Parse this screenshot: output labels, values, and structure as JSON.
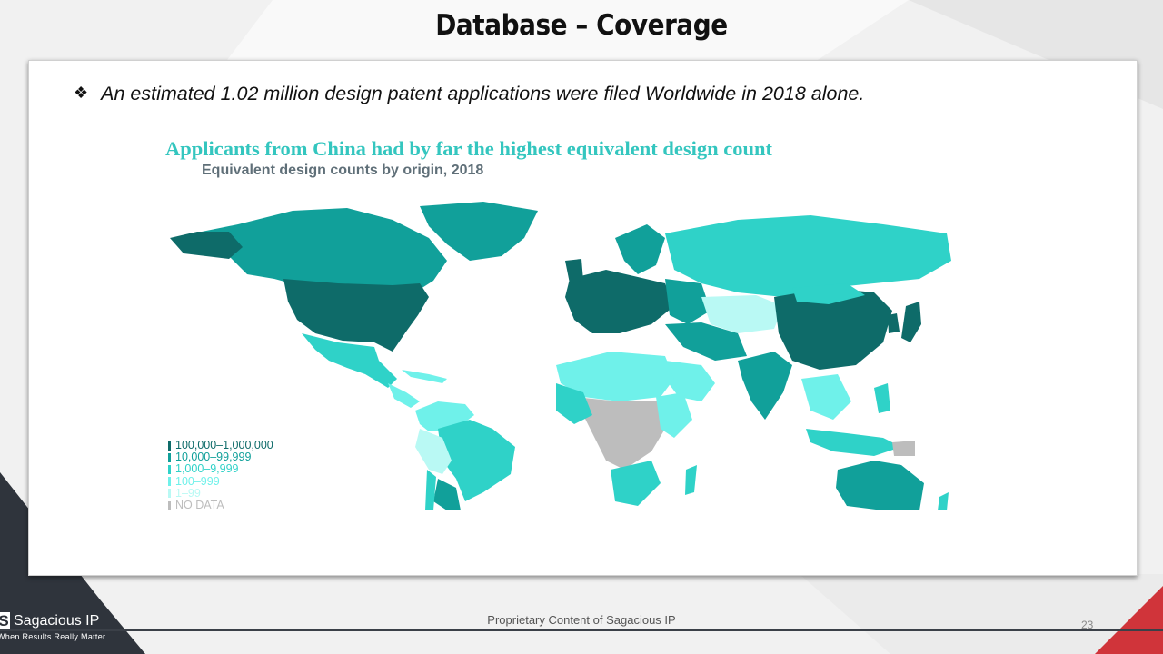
{
  "slide": {
    "title": "Database – Coverage",
    "bullet_icon": "diamond-bullet-icon",
    "bullet_text": "An estimated 1.02 million design patent applications were filed Worldwide in 2018 alone."
  },
  "chart": {
    "title": "Applicants from China had by far the highest equivalent design count",
    "subtitle": "Equivalent design counts by origin, 2018"
  },
  "legend": {
    "items": [
      {
        "label": "100,000–1,000,000",
        "color": "#0e6b69"
      },
      {
        "label": "10,000–99,999",
        "color": "#11a09a"
      },
      {
        "label": "1,000–9,999",
        "color": "#2fd2c8"
      },
      {
        "label": "100–999",
        "color": "#6ff1ea"
      },
      {
        "label": "1–99",
        "color": "#b9f9f4"
      },
      {
        "label": "NO DATA",
        "color": "#bdbdbd"
      }
    ]
  },
  "footer": {
    "text": "Proprietary  Content of Sagacious IP",
    "page_number": "23",
    "logo_mark": "S",
    "logo_name": "Sagacious IP",
    "logo_tagline": "When Results Really Matter"
  },
  "colors": {
    "dark_teal": "#0e6b69",
    "mid_teal": "#11a09a",
    "teal": "#2fd2c8",
    "light_teal": "#6ff1ea",
    "pale_teal": "#b9f9f4",
    "no_data": "#bdbdbd",
    "accent_red": "#d0343a",
    "footer_dark": "#2f343c"
  }
}
